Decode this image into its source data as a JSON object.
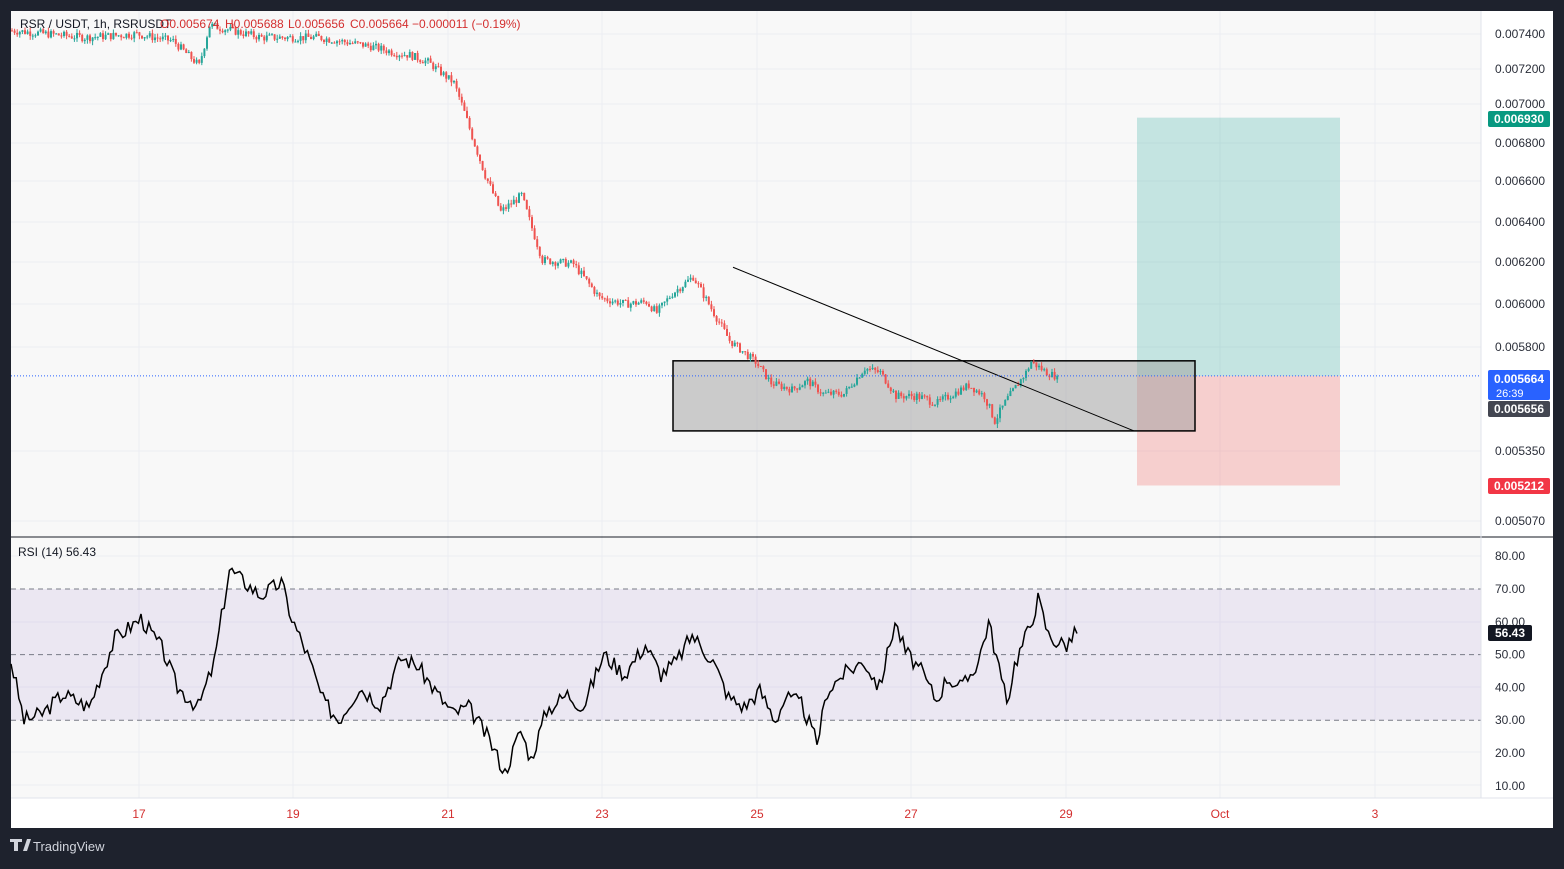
{
  "colors": {
    "up": "#26a69a",
    "down": "#ef5350",
    "rsi_line": "#000000",
    "rsi_band": "#7e57c2",
    "target_zone": "#26a69a",
    "stop_zone": "#ef5350",
    "last_price": "#2962ff",
    "box_fill": "#9e9e9e"
  },
  "header": {
    "symbol": "RSR / USDT, 1h, RSRUSDT",
    "open": "O0.005674",
    "high": "H0.005688",
    "low": "L0.005656",
    "close": "C0.005664",
    "change": "−0.000011 (−0.19%)"
  },
  "rsi_panel": {
    "title": "RSI (14)",
    "value": "56.43"
  },
  "brand": "TradingView",
  "tags": {
    "target": "0.006930",
    "last": "0.005664",
    "countdown": "26:39",
    "low": "0.005656",
    "stop": "0.005212",
    "rsi": "56.43"
  },
  "chart_data": [
    {
      "type": "candlestick",
      "symbol": "RSR / USDT",
      "interval": "1h",
      "price_axis_labels": [
        "0.007400",
        "0.007200",
        "0.007000",
        "0.006800",
        "0.006600",
        "0.006400",
        "0.006200",
        "0.006000",
        "0.005800",
        "0.005350",
        "0.005070"
      ],
      "time_axis_labels": [
        "17",
        "19",
        "21",
        "23",
        "25",
        "27",
        "29",
        "Oct",
        "3"
      ],
      "path_points": [
        [
          0,
          0.00742
        ],
        [
          28,
          0.00738
        ],
        [
          48,
          0.0074
        ],
        [
          62,
          0.00736
        ],
        [
          72,
          0.00722
        ],
        [
          76,
          0.00745
        ],
        [
          96,
          0.00738
        ],
        [
          118,
          0.00738
        ],
        [
          138,
          0.00733
        ],
        [
          148,
          0.00729
        ],
        [
          153,
          0.00728
        ],
        [
          160,
          0.00724
        ],
        [
          170,
          0.00712
        ],
        [
          182,
          0.00663
        ],
        [
          188,
          0.00645
        ],
        [
          196,
          0.00653
        ],
        [
          204,
          0.00621
        ],
        [
          216,
          0.00619
        ],
        [
          226,
          0.00603
        ],
        [
          236,
          0.006
        ],
        [
          244,
          0.00601
        ],
        [
          248,
          0.00596
        ],
        [
          254,
          0.00605
        ],
        [
          262,
          0.00613
        ],
        [
          268,
          0.006
        ],
        [
          276,
          0.00583
        ],
        [
          286,
          0.00573
        ],
        [
          292,
          0.00563
        ],
        [
          300,
          0.0056
        ],
        [
          306,
          0.00564
        ],
        [
          312,
          0.00558
        ],
        [
          320,
          0.00558
        ],
        [
          328,
          0.0057
        ],
        [
          334,
          0.00568
        ],
        [
          340,
          0.00557
        ],
        [
          348,
          0.00557
        ],
        [
          356,
          0.00554
        ],
        [
          362,
          0.00558
        ],
        [
          368,
          0.00562
        ],
        [
          374,
          0.00557
        ],
        [
          378,
          0.00547
        ],
        [
          383,
          0.00556
        ],
        [
          390,
          0.00568
        ],
        [
          392,
          0.00573
        ],
        [
          398,
          0.00568
        ],
        [
          402,
          0.00566
        ]
      ],
      "last_price": 0.005664,
      "day_low": 0.005656
    },
    {
      "type": "rsi",
      "title": "RSI (14)",
      "value": 56.43,
      "y_axis_labels": [
        "80.00",
        "70.00",
        "60.00",
        "50.00",
        "40.00",
        "30.00",
        "20.00",
        "10.00"
      ],
      "band": [
        30,
        70
      ],
      "midline": 50,
      "ylim": [
        5,
        83
      ]
    }
  ],
  "drawings": {
    "consolidation_box": {
      "price_low": 0.00543,
      "price_high": 0.005735
    },
    "trendline": {
      "from": [
        268,
        0.006175
      ],
      "to": [
        391,
        0.00543
      ]
    },
    "long_position": {
      "start_bar": 392,
      "end_bar": 450,
      "entry": 0.005664,
      "target": 0.00693,
      "stop": 0.005212
    }
  }
}
